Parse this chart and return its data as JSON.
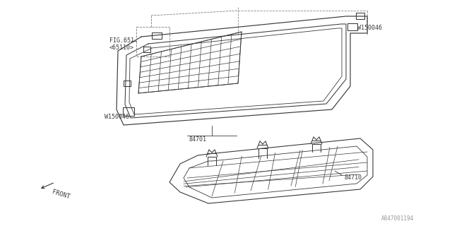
{
  "bg_color": "#ffffff",
  "line_color": "#3a3a3a",
  "fig_width": 6.4,
  "fig_height": 3.2,
  "dpi": 100,
  "part_number_84701": "84701",
  "part_number_84710": "84710",
  "part_number_W150046_top": "W150046",
  "part_number_W150046_bottom": "W150046",
  "part_number_fig651": "FIG.651",
  "part_number_65110": "<65110>",
  "diagram_id": "A847001194",
  "front_label": "FRONT"
}
